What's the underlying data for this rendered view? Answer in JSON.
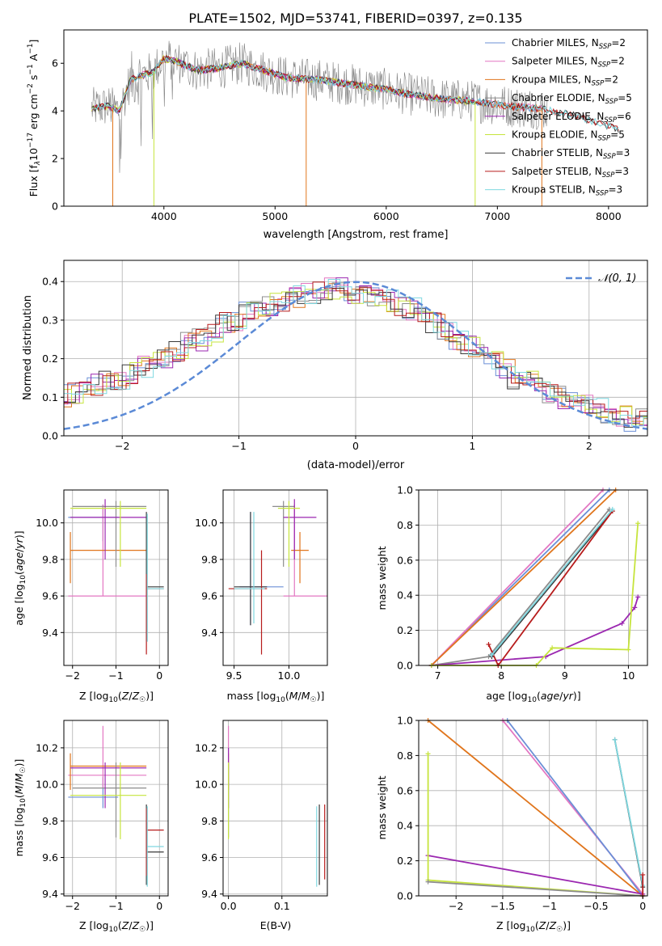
{
  "figure_title": "PLATE=1502, MJD=53741, FIBERID=0397, z=0.135",
  "colors": {
    "chabrier_miles": "#6b8fd6",
    "salpeter_miles": "#e377c2",
    "kroupa_miles": "#e0751c",
    "chabrier_elodie": "#8c8c8c",
    "salpeter_elodie": "#9b27b0",
    "kroupa_elodie": "#c6e43c",
    "chabrier_stelib": "#3a3a3a",
    "salpeter_stelib": "#b71c1c",
    "kroupa_stelib": "#7fd8e0",
    "data": "#808080",
    "gaussian": "#5b8ad6"
  },
  "chart_data": [
    {
      "type": "line",
      "id": "spectrum",
      "xlabel": "wavelength [Angstrom, rest frame]",
      "ylabel": "Flux [f_λ 10^-17 erg cm^-2 s^-1 A^-1]",
      "xlim": [
        3100,
        8350
      ],
      "ylim": [
        0,
        7.4
      ],
      "xticks": [
        4000,
        5000,
        6000,
        7000,
        8000
      ],
      "yticks": [
        0,
        2,
        4,
        6
      ],
      "grid": false,
      "legend_position": "top-right",
      "legend": [
        {
          "name": "Chabrier MILES",
          "n_ssp": "2"
        },
        {
          "name": "Salpeter MILES",
          "n_ssp": "2"
        },
        {
          "name": "Kroupa MILES",
          "n_ssp": "2"
        },
        {
          "name": "Chabrier ELODIE",
          "n_ssp": "5"
        },
        {
          "name": "Salpeter ELODIE",
          "n_ssp": "6"
        },
        {
          "name": "Kroupa ELODIE",
          "n_ssp": "5"
        },
        {
          "name": "Chabrier STELIB",
          "n_ssp": "3"
        },
        {
          "name": "Salpeter STELIB",
          "n_ssp": "3"
        },
        {
          "name": "Kroupa STELIB",
          "n_ssp": "3"
        }
      ],
      "continuum": [
        [
          3350,
          4.1
        ],
        [
          3500,
          4.2
        ],
        [
          3600,
          4.0
        ],
        [
          3700,
          5.3
        ],
        [
          3800,
          5.5
        ],
        [
          3900,
          5.6
        ],
        [
          4000,
          6.2
        ],
        [
          4100,
          6.1
        ],
        [
          4300,
          5.7
        ],
        [
          4500,
          5.8
        ],
        [
          4700,
          6.0
        ],
        [
          4900,
          5.7
        ],
        [
          5100,
          5.4
        ],
        [
          5400,
          5.3
        ],
        [
          5700,
          5.1
        ],
        [
          6000,
          4.9
        ],
        [
          6200,
          4.7
        ],
        [
          6500,
          4.5
        ],
        [
          6800,
          4.4
        ],
        [
          7100,
          4.2
        ],
        [
          7400,
          4.1
        ],
        [
          7700,
          3.8
        ],
        [
          7900,
          3.5
        ],
        [
          8100,
          3.2
        ]
      ]
    },
    {
      "type": "bar",
      "id": "residuals",
      "xlabel": "(data-model)/error",
      "ylabel": "Normed distribution",
      "xlim": [
        -2.5,
        2.5
      ],
      "ylim": [
        0,
        0.455
      ],
      "xticks": [
        -2,
        -1,
        0,
        1,
        2
      ],
      "yticks": [
        0.0,
        0.1,
        0.2,
        0.3,
        0.4
      ],
      "grid": true,
      "legend_position": "top-right",
      "gaussian_label": "N(0,1)",
      "bin_width": 0.1,
      "hist_center": [
        0.02,
        0.03,
        0.04,
        0.05,
        0.06,
        0.06,
        0.07,
        0.08,
        0.09,
        0.1,
        0.11,
        0.12,
        0.13,
        0.14,
        0.14,
        0.16,
        0.18,
        0.19,
        0.2,
        0.22,
        0.24,
        0.25,
        0.27,
        0.29,
        0.3,
        0.32,
        0.33,
        0.34,
        0.35,
        0.36,
        0.37,
        0.37,
        0.38,
        0.38,
        0.37,
        0.36,
        0.36,
        0.35,
        0.34,
        0.33,
        0.31,
        0.29,
        0.27,
        0.25,
        0.23,
        0.21,
        0.19,
        0.17,
        0.15,
        0.14,
        0.12,
        0.11,
        0.1,
        0.09,
        0.08,
        0.07,
        0.06,
        0.05,
        0.04,
        0.04,
        0.03,
        0.03,
        0.03,
        0.02,
        0.02,
        0.02,
        0.02,
        0.02,
        0.02,
        0.02
      ]
    },
    {
      "type": "scatter",
      "id": "age_vs_metallicity",
      "xlabel": "Z [log10(Z/Z☉)]",
      "ylabel": "age [log10(age/yr)]",
      "xlim": [
        -2.2,
        0.2
      ],
      "ylim": [
        9.22,
        10.18
      ],
      "xticks": [
        -2,
        -1,
        0
      ],
      "yticks": [
        9.4,
        9.6,
        9.8,
        10.0
      ],
      "grid": true
    },
    {
      "type": "scatter",
      "id": "age_vs_mass",
      "xlabel": "mass [log10(M/M☉)]",
      "ylabel": "",
      "xlim": [
        9.4,
        10.35
      ],
      "ylim": [
        9.22,
        10.18
      ],
      "xticks": [
        9.5,
        10.0
      ],
      "yticks": [
        9.4,
        9.6,
        9.8,
        10.0
      ],
      "grid": true
    },
    {
      "type": "line",
      "id": "massweight_vs_age",
      "xlabel": "age [log10(age/yr)]",
      "ylabel": "mass weight",
      "xlim": [
        6.7,
        10.3
      ],
      "ylim": [
        0,
        1
      ],
      "xticks": [
        7,
        8,
        9,
        10
      ],
      "yticks": [
        0.0,
        0.2,
        0.4,
        0.6,
        0.8,
        1.0
      ],
      "grid": true,
      "series": [
        {
          "color_key": "chabrier_miles",
          "x": [
            6.9,
            9.7
          ],
          "y": [
            0.0,
            1.0
          ]
        },
        {
          "color_key": "salpeter_miles",
          "x": [
            6.9,
            9.6
          ],
          "y": [
            0.0,
            1.0
          ]
        },
        {
          "color_key": "kroupa_miles",
          "x": [
            6.9,
            9.8
          ],
          "y": [
            0.0,
            1.0
          ]
        },
        {
          "color_key": "chabrier_elodie",
          "x": [
            6.9,
            7.8,
            9.7
          ],
          "y": [
            0.0,
            0.05,
            0.89
          ]
        },
        {
          "color_key": "salpeter_elodie",
          "x": [
            6.9,
            8.7,
            9.9,
            10.1,
            10.15
          ],
          "y": [
            0.0,
            0.05,
            0.24,
            0.33,
            0.39
          ]
        },
        {
          "color_key": "kroupa_elodie",
          "x": [
            6.9,
            8.55,
            8.8,
            10.0,
            10.15
          ],
          "y": [
            0.0,
            0.0,
            0.1,
            0.09,
            0.81
          ]
        },
        {
          "color_key": "chabrier_stelib",
          "x": [
            7.85,
            9.75
          ],
          "y": [
            0.05,
            0.88
          ]
        },
        {
          "color_key": "salpeter_stelib",
          "x": [
            7.8,
            7.95,
            9.75
          ],
          "y": [
            0.12,
            0.0,
            0.88
          ]
        },
        {
          "color_key": "kroupa_stelib",
          "x": [
            7.85,
            9.75
          ],
          "y": [
            0.06,
            0.89
          ]
        }
      ]
    },
    {
      "type": "scatter",
      "id": "mass_vs_metallicity",
      "xlabel": "Z [log10(Z/Z☉)]",
      "ylabel": "mass [log10(M/M☉)]",
      "xlim": [
        -2.2,
        0.2
      ],
      "ylim": [
        9.39,
        10.35
      ],
      "xticks": [
        -2,
        -1,
        0
      ],
      "yticks": [
        9.4,
        9.6,
        9.8,
        10.0,
        10.2
      ],
      "grid": true
    },
    {
      "type": "scatter",
      "id": "mass_vs_ebv",
      "xlabel": "E(B-V)",
      "ylabel": "",
      "xlim": [
        -0.01,
        0.185
      ],
      "ylim": [
        9.39,
        10.35
      ],
      "xticks": [
        0.0,
        0.1
      ],
      "yticks": [
        9.4,
        9.6,
        9.8,
        10.0,
        10.2
      ],
      "grid": true
    },
    {
      "type": "line",
      "id": "massweight_vs_metallicity",
      "xlabel": "Z [log10(Z/Z☉)]",
      "ylabel": "mass weight",
      "xlim": [
        -2.4,
        0.05
      ],
      "ylim": [
        0,
        1
      ],
      "xticks": [
        -2.0,
        -1.5,
        -1.0,
        -0.5,
        0.0
      ],
      "yticks": [
        0.0,
        0.2,
        0.4,
        0.6,
        0.8,
        1.0
      ],
      "grid": true,
      "series": [
        {
          "color_key": "kroupa_miles",
          "x": [
            -2.3,
            0.0
          ],
          "y": [
            1.0,
            0.0
          ]
        },
        {
          "color_key": "salpeter_miles",
          "x": [
            -1.5,
            0.0
          ],
          "y": [
            1.0,
            0.01
          ]
        },
        {
          "color_key": "chabrier_miles",
          "x": [
            -1.45,
            0.0
          ],
          "y": [
            1.0,
            0.0
          ]
        },
        {
          "color_key": "salpeter_elodie",
          "x": [
            -2.3,
            0.0
          ],
          "y": [
            0.23,
            0.01
          ]
        },
        {
          "color_key": "kroupa_elodie",
          "x": [
            -2.3,
            -2.3,
            0.0
          ],
          "y": [
            0.81,
            0.09,
            0.0
          ]
        },
        {
          "color_key": "chabrier_elodie",
          "x": [
            -2.3,
            0.0
          ],
          "y": [
            0.08,
            0.0
          ]
        },
        {
          "color_key": "chabrier_stelib",
          "x": [
            -0.3,
            0.0
          ],
          "y": [
            0.89,
            0.05
          ]
        },
        {
          "color_key": "kroupa_stelib",
          "x": [
            -0.3,
            0.0
          ],
          "y": [
            0.89,
            0.06
          ]
        },
        {
          "color_key": "salpeter_stelib",
          "x": [
            0.0,
            0.0
          ],
          "y": [
            0.12,
            0.0
          ]
        }
      ]
    }
  ]
}
